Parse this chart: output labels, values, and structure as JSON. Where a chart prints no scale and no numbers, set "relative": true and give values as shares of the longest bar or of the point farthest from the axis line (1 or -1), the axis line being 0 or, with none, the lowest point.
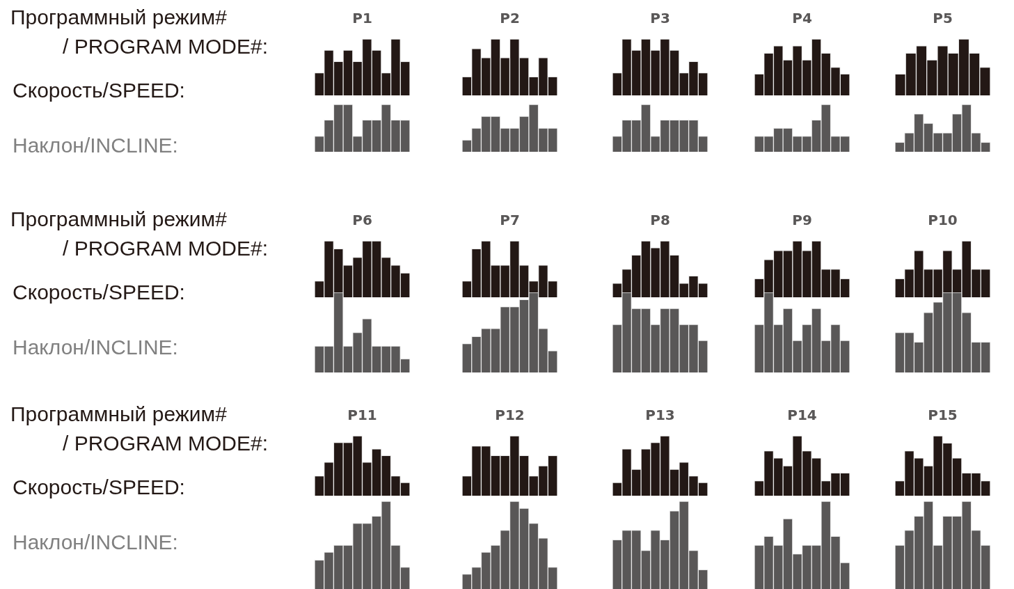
{
  "chart_data": [
    {
      "type": "other",
      "annotations": [
        "Программный режим#",
        "/ PROGRAM MODE#:",
        "Скорость/SPEED:",
        "Наклон/INCLINE:"
      ]
    },
    {
      "type": "bar",
      "title": "P1",
      "relative": true,
      "color": "#231815",
      "categories": [
        null,
        null,
        null,
        null,
        null,
        null,
        null,
        null,
        null,
        null
      ],
      "values": [
        0.4,
        0.8,
        0.6,
        0.8,
        0.6,
        1,
        0.8,
        0.4,
        1,
        0.6
      ]
    },
    {
      "type": "bar",
      "relative": true,
      "color": "#595757",
      "categories": [
        null,
        null,
        null,
        null,
        null,
        null,
        null,
        null,
        null,
        null
      ],
      "values": [
        0.33,
        0.67,
        1,
        1,
        0.33,
        0.67,
        0.67,
        1,
        0.67,
        0.67
      ]
    },
    {
      "type": "bar",
      "title": "P2",
      "relative": true,
      "color": "#231815",
      "categories": [
        null,
        null,
        null,
        null,
        null,
        null,
        null,
        null,
        null,
        null
      ],
      "values": [
        0.33,
        0.83,
        0.67,
        1,
        0.67,
        1,
        0.67,
        0.33,
        0.67,
        0.33
      ]
    },
    {
      "type": "bar",
      "relative": true,
      "color": "#595757",
      "categories": [
        null,
        null,
        null,
        null,
        null,
        null,
        null,
        null,
        null,
        null
      ],
      "values": [
        0.25,
        0.5,
        0.75,
        0.75,
        0.5,
        0.5,
        0.75,
        1,
        0.5,
        0.5
      ]
    },
    {
      "type": "bar",
      "title": "P3",
      "relative": true,
      "color": "#231815",
      "categories": [
        null,
        null,
        null,
        null,
        null,
        null,
        null,
        null,
        null,
        null
      ],
      "values": [
        0.4,
        1,
        0.8,
        1,
        0.8,
        1,
        0.8,
        0.4,
        0.6,
        0.4
      ]
    },
    {
      "type": "bar",
      "relative": true,
      "color": "#595757",
      "categories": [
        null,
        null,
        null,
        null,
        null,
        null,
        null,
        null,
        null,
        null
      ],
      "values": [
        0.33,
        0.67,
        0.67,
        1,
        0.33,
        0.67,
        0.67,
        0.67,
        0.67,
        0.33
      ]
    },
    {
      "type": "bar",
      "title": "P4",
      "relative": true,
      "color": "#231815",
      "categories": [
        null,
        null,
        null,
        null,
        null,
        null,
        null,
        null,
        null,
        null
      ],
      "values": [
        0.38,
        0.75,
        0.88,
        0.63,
        0.88,
        0.63,
        1,
        0.75,
        0.5,
        0.38
      ]
    },
    {
      "type": "bar",
      "relative": true,
      "color": "#595757",
      "categories": [
        null,
        null,
        null,
        null,
        null,
        null,
        null,
        null,
        null,
        null
      ],
      "values": [
        0.33,
        0.33,
        0.5,
        0.5,
        0.33,
        0.33,
        0.67,
        1,
        0.33,
        0.33
      ]
    },
    {
      "type": "bar",
      "title": "P5",
      "relative": true,
      "color": "#231815",
      "categories": [
        null,
        null,
        null,
        null,
        null,
        null,
        null,
        null,
        null
      ],
      "values": [
        0.38,
        0.75,
        0.88,
        0.63,
        0.88,
        0.75,
        1,
        0.75,
        0.5
      ]
    },
    {
      "type": "bar",
      "relative": true,
      "color": "#595757",
      "categories": [
        null,
        null,
        null,
        null,
        null,
        null,
        null,
        null,
        null,
        null
      ],
      "values": [
        0.2,
        0.4,
        0.8,
        0.6,
        0.4,
        0.4,
        0.8,
        1,
        0.4,
        0.2
      ]
    },
    {
      "type": "other",
      "annotations": [
        "Программный режим#",
        "/ PROGRAM MODE#:",
        "Скорость/SPEED:",
        "Наклон/INCLINE:"
      ]
    },
    {
      "type": "bar",
      "title": "P6",
      "relative": true,
      "color": "#231815",
      "categories": [
        null,
        null,
        null,
        null,
        null,
        null,
        null,
        null,
        null,
        null
      ],
      "values": [
        0.29,
        1,
        0.86,
        0.57,
        0.71,
        1,
        1,
        0.71,
        0.57,
        0.43
      ]
    },
    {
      "type": "bar",
      "relative": true,
      "color": "#595757",
      "categories": [
        null,
        null,
        null,
        null,
        null,
        null,
        null,
        null,
        null,
        null
      ],
      "values": [
        0.33,
        0.33,
        1,
        0.33,
        0.5,
        0.67,
        0.33,
        0.33,
        0.33,
        0.17
      ]
    },
    {
      "type": "bar",
      "title": "P7",
      "relative": true,
      "color": "#231815",
      "categories": [
        null,
        null,
        null,
        null,
        null,
        null,
        null,
        null,
        null,
        null
      ],
      "values": [
        0.29,
        0.86,
        1,
        0.57,
        0.57,
        1,
        0.57,
        0.29,
        0.57,
        0.29
      ]
    },
    {
      "type": "bar",
      "relative": true,
      "color": "#595757",
      "categories": [
        null,
        null,
        null,
        null,
        null,
        null,
        null,
        null,
        null,
        null
      ],
      "values": [
        0.36,
        0.45,
        0.55,
        0.55,
        0.82,
        0.82,
        0.91,
        1,
        0.55,
        0.27
      ]
    },
    {
      "type": "bar",
      "title": "P8",
      "relative": true,
      "color": "#231815",
      "categories": [
        null,
        null,
        null,
        null,
        null,
        null,
        null,
        null,
        null,
        null
      ],
      "values": [
        0.25,
        0.5,
        0.75,
        1,
        0.88,
        1,
        0.75,
        0.25,
        0.38,
        0.25
      ]
    },
    {
      "type": "bar",
      "relative": true,
      "color": "#595757",
      "categories": [
        null,
        null,
        null,
        null,
        null,
        null,
        null,
        null,
        null,
        null
      ],
      "values": [
        0.6,
        1,
        0.8,
        0.8,
        0.6,
        0.8,
        0.8,
        0.6,
        0.6,
        0.4
      ]
    },
    {
      "type": "bar",
      "title": "P9",
      "relative": true,
      "color": "#231815",
      "categories": [
        null,
        null,
        null,
        null,
        null,
        null,
        null,
        null,
        null,
        null
      ],
      "values": [
        0.33,
        0.67,
        0.83,
        0.83,
        1,
        0.83,
        1,
        0.5,
        0.5,
        0.33
      ]
    },
    {
      "type": "bar",
      "relative": true,
      "color": "#595757",
      "categories": [
        null,
        null,
        null,
        null,
        null,
        null,
        null,
        null,
        null,
        null
      ],
      "values": [
        0.6,
        1,
        0.6,
        0.8,
        0.4,
        0.6,
        0.8,
        0.4,
        0.6,
        0.4
      ]
    },
    {
      "type": "bar",
      "title": "P10",
      "relative": true,
      "color": "#231815",
      "categories": [
        null,
        null,
        null,
        null,
        null,
        null,
        null,
        null,
        null,
        null
      ],
      "values": [
        0.33,
        0.5,
        0.83,
        0.5,
        0.5,
        0.83,
        0.5,
        1,
        0.5,
        0.5
      ]
    },
    {
      "type": "bar",
      "relative": true,
      "color": "#595757",
      "categories": [
        null,
        null,
        null,
        null,
        null,
        null,
        null,
        null,
        null,
        null
      ],
      "values": [
        0.5,
        0.5,
        0.38,
        0.75,
        0.88,
        1,
        1,
        0.75,
        0.38,
        0.38
      ]
    },
    {
      "type": "other",
      "annotations": [
        "Программный режим#",
        "/ PROGRAM MODE#:",
        "Скорость/SPEED:",
        "Наклон/INCLINE:"
      ]
    },
    {
      "type": "bar",
      "title": "P11",
      "relative": true,
      "color": "#231815",
      "categories": [
        null,
        null,
        null,
        null,
        null,
        null,
        null,
        null,
        null,
        null
      ],
      "values": [
        0.33,
        0.56,
        0.89,
        0.89,
        1,
        0.56,
        0.78,
        0.67,
        0.33,
        0.22
      ]
    },
    {
      "type": "bar",
      "relative": true,
      "color": "#595757",
      "categories": [
        null,
        null,
        null,
        null,
        null,
        null,
        null,
        null,
        null,
        null
      ],
      "values": [
        0.33,
        0.42,
        0.5,
        0.5,
        0.75,
        0.75,
        0.83,
        1,
        0.5,
        0.25
      ]
    },
    {
      "type": "bar",
      "title": "P12",
      "relative": true,
      "color": "#231815",
      "categories": [
        null,
        null,
        null,
        null,
        null,
        null,
        null,
        null,
        null,
        null
      ],
      "values": [
        0.33,
        0.83,
        0.83,
        0.67,
        0.67,
        1,
        0.67,
        0.33,
        0.5,
        0.67
      ]
    },
    {
      "type": "bar",
      "relative": true,
      "color": "#595757",
      "categories": [
        null,
        null,
        null,
        null,
        null,
        null,
        null,
        null,
        null,
        null
      ],
      "values": [
        0.17,
        0.25,
        0.42,
        0.5,
        0.67,
        1,
        0.92,
        0.75,
        0.58,
        0.25
      ]
    },
    {
      "type": "bar",
      "title": "P13",
      "relative": true,
      "color": "#231815",
      "categories": [
        null,
        null,
        null,
        null,
        null,
        null,
        null,
        null,
        null,
        null
      ],
      "values": [
        0.22,
        0.78,
        0.44,
        0.78,
        0.89,
        1,
        0.44,
        0.56,
        0.33,
        0.22
      ]
    },
    {
      "type": "bar",
      "relative": true,
      "color": "#595757",
      "categories": [
        null,
        null,
        null,
        null,
        null,
        null,
        null,
        null,
        null,
        null
      ],
      "values": [
        0.56,
        0.67,
        0.67,
        0.44,
        0.67,
        0.56,
        0.89,
        1,
        0.44,
        0.22
      ]
    },
    {
      "type": "bar",
      "title": "P14",
      "relative": true,
      "color": "#231815",
      "categories": [
        null,
        null,
        null,
        null,
        null,
        null,
        null,
        null,
        null,
        null
      ],
      "values": [
        0.25,
        0.75,
        0.63,
        0.5,
        1,
        0.75,
        0.63,
        0.25,
        0.38,
        0.38
      ]
    },
    {
      "type": "bar",
      "relative": true,
      "color": "#595757",
      "categories": [
        null,
        null,
        null,
        null,
        null,
        null,
        null,
        null,
        null,
        null
      ],
      "values": [
        0.5,
        0.6,
        0.5,
        0.8,
        0.4,
        0.5,
        0.5,
        1,
        0.6,
        0.3
      ]
    },
    {
      "type": "bar",
      "title": "P15",
      "relative": true,
      "color": "#231815",
      "categories": [
        null,
        null,
        null,
        null,
        null,
        null,
        null,
        null,
        null,
        null
      ],
      "values": [
        0.25,
        0.75,
        0.63,
        0.5,
        1,
        0.88,
        0.63,
        0.38,
        0.38,
        0.25
      ]
    },
    {
      "type": "bar",
      "relative": true,
      "color": "#595757",
      "categories": [
        null,
        null,
        null,
        null,
        null,
        null,
        null,
        null,
        null,
        null
      ],
      "values": [
        0.5,
        0.67,
        0.83,
        1,
        0.5,
        0.83,
        0.83,
        1,
        0.67,
        0.5
      ]
    }
  ]
}
